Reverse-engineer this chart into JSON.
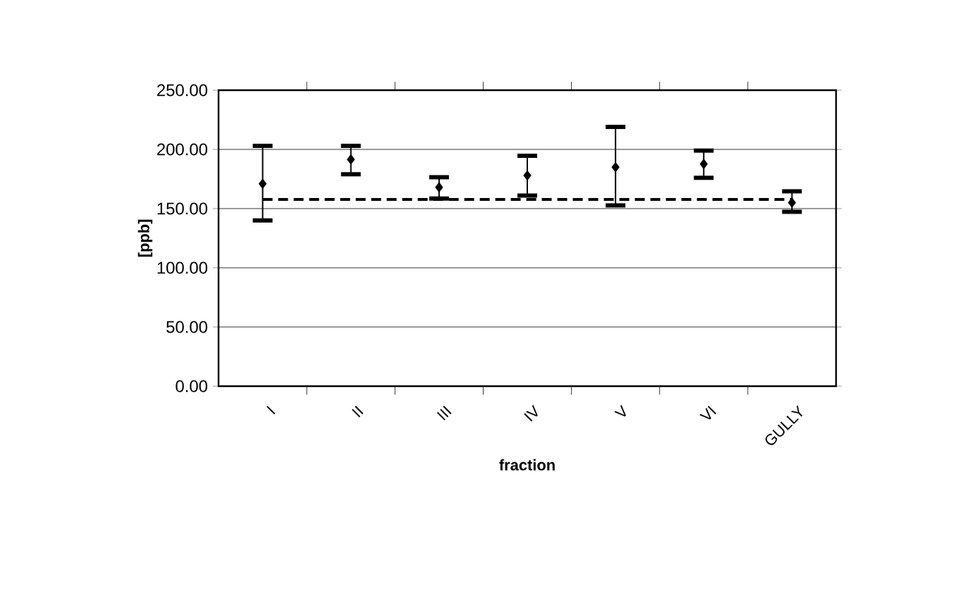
{
  "chart_data": {
    "type": "scatter",
    "xlabel": "fraction",
    "ylabel": "[ppb]",
    "categories": [
      "I",
      "II",
      "III",
      "IV",
      "V",
      "VI",
      "GULLY"
    ],
    "values": [
      171,
      191.5,
      168,
      178,
      185,
      187.7,
      155
    ],
    "errors": [
      [
        140,
        203
      ],
      [
        179,
        203
      ],
      [
        158.5,
        176.5
      ],
      [
        161,
        194.6
      ],
      [
        152.7,
        219
      ],
      [
        176,
        199
      ],
      [
        147.3,
        164.6
      ]
    ],
    "color": "#000000",
    "marker": "diamond",
    "ylim": [
      0,
      250
    ],
    "yticks": [
      {
        "value": 0,
        "label": "0.00"
      },
      {
        "value": 50,
        "label": "50.00"
      },
      {
        "value": 100,
        "label": "100.00"
      },
      {
        "value": 150,
        "label": "150.00"
      },
      {
        "value": 200,
        "label": "200.00"
      },
      {
        "value": 250,
        "label": "250.00"
      }
    ],
    "grid": "y",
    "ref_lines": [
      {
        "axis": "y",
        "value": 157.7,
        "line_style": "dashed"
      }
    ]
  }
}
